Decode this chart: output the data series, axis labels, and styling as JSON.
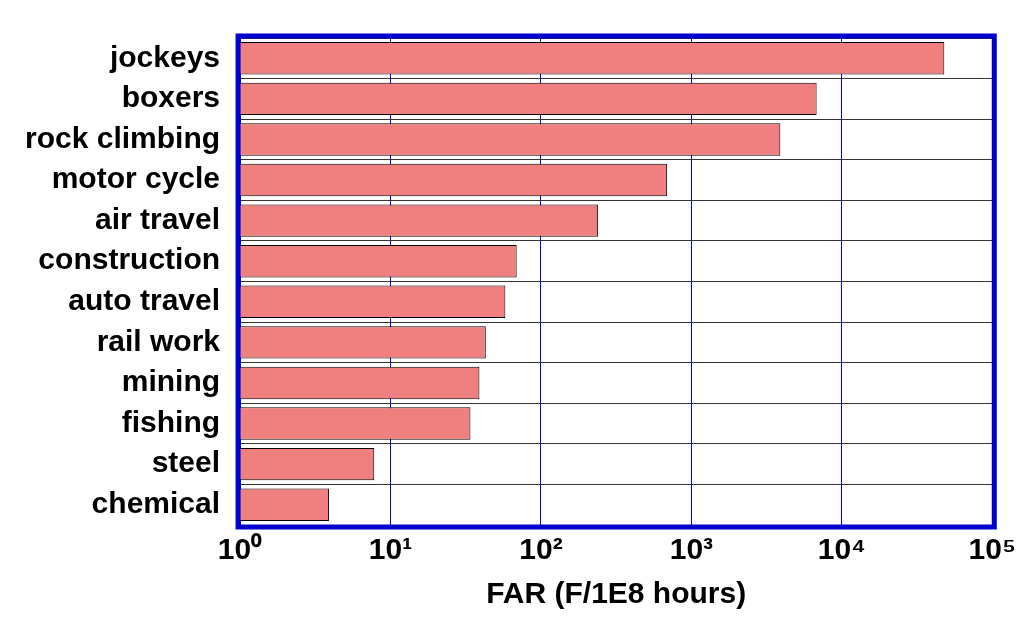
{
  "chart_data": {
    "type": "bar",
    "orientation": "horizontal",
    "log": "x",
    "xlabel": "FAR (F/1E8 hours)",
    "categories": [
      "jockeys",
      "boxers",
      "rock climbing",
      "motor cycle",
      "air travel",
      "construction",
      "auto travel",
      "rail work",
      "mining",
      "fishing",
      "steel",
      "chemical"
    ],
    "values": [
      48000,
      6800,
      3900,
      690,
      240,
      69,
      58,
      43,
      39,
      34,
      7.8,
      3.9
    ],
    "color": "#f08080",
    "xlim": [
      1,
      100000
    ],
    "xticks": [
      {
        "value": 1,
        "label": "10⁰"
      },
      {
        "value": 10,
        "label": "10¹"
      },
      {
        "value": 100,
        "label": "10²"
      },
      {
        "value": 1000,
        "label": "10³"
      },
      {
        "value": 10000,
        "label": "10⁴"
      },
      {
        "value": 100000,
        "label": "10⁵"
      }
    ],
    "grid": true,
    "legend": false
  }
}
